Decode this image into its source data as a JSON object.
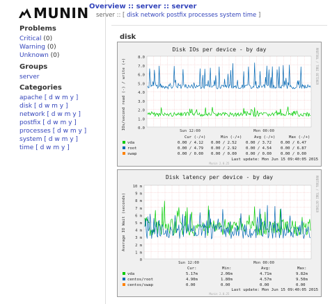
{
  "app": {
    "logo_text": "MUNIN"
  },
  "header": {
    "crumbs": [
      "Overview",
      "server",
      "server"
    ],
    "crumb_sep": " :: ",
    "host": "server",
    "subnav_links": [
      "disk",
      "network",
      "postfix",
      "processes",
      "system",
      "time"
    ]
  },
  "sidebar": {
    "problems_title": "Problems",
    "problems": [
      {
        "label": "Critical",
        "count": "(0)"
      },
      {
        "label": "Warning",
        "count": "(0)"
      },
      {
        "label": "Unknown",
        "count": "(0)"
      }
    ],
    "groups_title": "Groups",
    "groups": [
      "server"
    ],
    "categories_title": "Categories",
    "categories": [
      "apache",
      "disk",
      "network",
      "postfix",
      "processes",
      "system",
      "time"
    ],
    "dwmy": "[ d w m y ]"
  },
  "section": {
    "title": "disk"
  },
  "graph1": {
    "title": "Disk IOs per device - by day",
    "ylabel": "IOs/second read (-) / write (+)",
    "side_label": "RRDTOOL / TOBI OETIKER",
    "yticks": [
      "8.0",
      "7.0",
      "6.0",
      "5.0",
      "4.0",
      "3.0",
      "2.0",
      "1.0",
      "0.0"
    ],
    "xticks": [
      "Sun 12:00",
      "Mon 00:00"
    ],
    "legend_header": [
      "Cur (-/+)",
      "Min (-/+)",
      "Avg (-/+)",
      "Max (-/+)"
    ],
    "rows": [
      {
        "name": "vda",
        "color": "#00cc00",
        "cur": "0.00 / 4.12",
        "min": "0.00 / 2.52",
        "avg": "0.00 / 3.72",
        "max": "0.00 / 6.47"
      },
      {
        "name": "root",
        "color": "#0066b3",
        "cur": "0.00 / 4.79",
        "min": "0.00 / 2.92",
        "avg": "0.00 / 4.54",
        "max": "0.00 / 6.87"
      },
      {
        "name": "swap",
        "color": "#ff8000",
        "cur": "0.00 / 0.00",
        "min": "0.00 / 0.00",
        "avg": "0.00 / 0.00",
        "max": "0.00 / 0.00"
      }
    ],
    "last_update": "Last update: Mon Jun 15 09:40:05 2015",
    "version": "Munin 2.0.25"
  },
  "graph2": {
    "title": "Disk latency per device - by day",
    "ylabel": "Average IO Wait (seconds)",
    "side_label": "RRDTOOL / TOBI OETIKER",
    "yticks": [
      "10 m",
      "9 m",
      "8 m",
      "7 m",
      "6 m",
      "5 m",
      "4 m",
      "3 m",
      "2 m",
      "1 m",
      "0"
    ],
    "xticks": [
      "Sun 12:00",
      "Mon 00:00"
    ],
    "legend_header": [
      "Cur:",
      "Min:",
      "Avg:",
      "Max:"
    ],
    "rows": [
      {
        "name": "vda",
        "color": "#00cc00",
        "cur": "5.17m",
        "min": "2.06m",
        "avg": "4.71m",
        "max": "9.82m"
      },
      {
        "name": "centos/root",
        "color": "#0066b3",
        "cur": "4.90m",
        "min": "1.80m",
        "avg": "4.57m",
        "max": "9.50m"
      },
      {
        "name": "centos/swap",
        "color": "#ff8000",
        "cur": "0.00",
        "min": "0.00",
        "avg": "0.00",
        "max": "0.00"
      }
    ],
    "last_update": "Last update: Mon Jun 15 09:40:05 2015",
    "version": "Munin 2.0.25"
  }
}
